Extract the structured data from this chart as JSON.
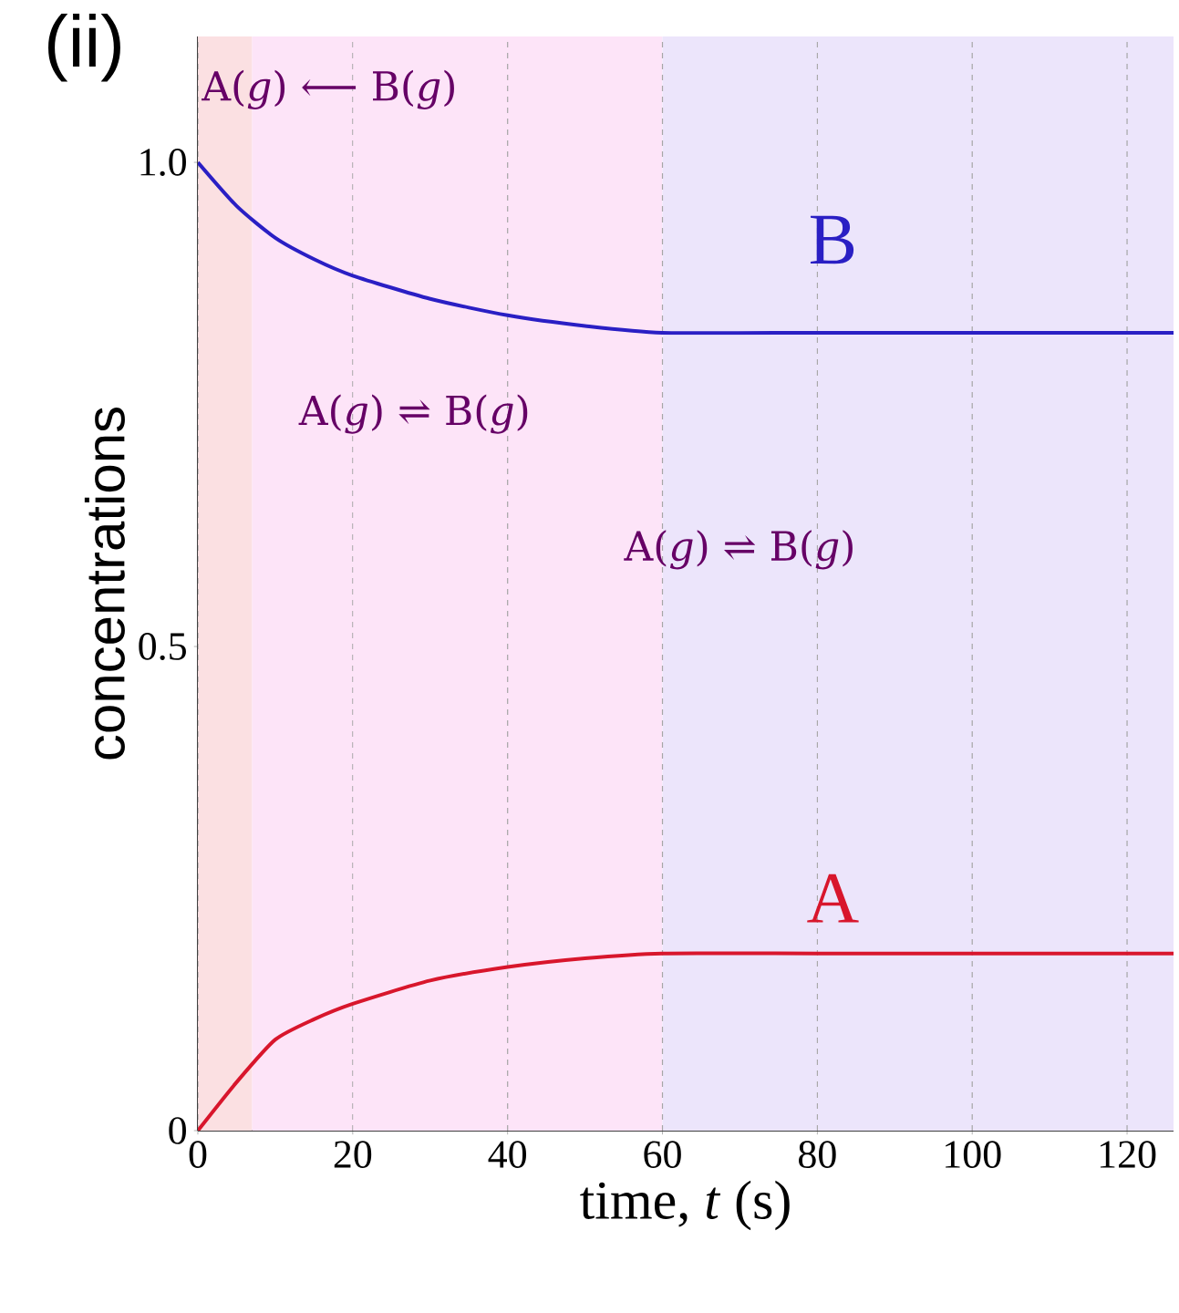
{
  "chart_data": {
    "type": "line",
    "title": "(ii)",
    "xlabel": "time, *t* (s)",
    "ylabel": "concentrations",
    "xlim": [
      0,
      126
    ],
    "ylim": [
      0,
      1.13
    ],
    "xticks": [
      0,
      20,
      40,
      60,
      80,
      100,
      120
    ],
    "yticks": [
      0,
      {
        "value": 0.5,
        "label": "0.5"
      },
      {
        "value": 1,
        "label": "1.0"
      }
    ],
    "grid": "x",
    "line_style": "solid",
    "marker": "none",
    "x": [
      0,
      5,
      10,
      15,
      20,
      30,
      40,
      50,
      60,
      80,
      100,
      126
    ],
    "series": [
      {
        "name": "B",
        "color": "#2a1fc4",
        "values": [
          1.0,
          0.955,
          0.922,
          0.9,
          0.883,
          0.859,
          0.842,
          0.831,
          0.824,
          0.824,
          0.824,
          0.824
        ]
      },
      {
        "name": "A",
        "color": "#d8162c",
        "values": [
          0,
          0.05,
          0.094,
          0.115,
          0.131,
          0.155,
          0.169,
          0.178,
          0.183,
          0.183,
          0.183,
          0.183
        ]
      }
    ],
    "bands": [
      {
        "axis": "x",
        "from": 0,
        "to": 7,
        "color": "#fbe0e2"
      },
      {
        "axis": "x",
        "from": 7,
        "to": 60,
        "color": "#fde4f8"
      },
      {
        "axis": "x",
        "from": 60,
        "to": 126,
        "color": "#ece5fb"
      }
    ],
    "annotations": [
      "A(*g*) ⟵ B(*g*)",
      "A(*g*) ⇌ B(*g*)",
      "A(*g*) ⇌ B(*g*)"
    ]
  }
}
